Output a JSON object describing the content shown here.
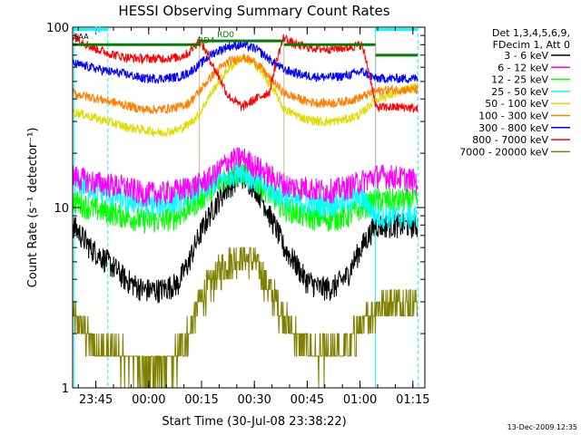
{
  "chart_data": {
    "type": "line",
    "title": "HESSI Observing Summary Count Rates",
    "xlabel": "Start Time (30-Jul-08 23:38:22)",
    "ylabel": "Count Rate (s⁻¹ detector⁻¹)",
    "yscale": "log",
    "ylim": [
      1,
      100
    ],
    "xlim_minutes": [
      0,
      100
    ],
    "x_unit": "minutes after start",
    "x_ticks": [
      {
        "label": "23:45",
        "x": 6.6
      },
      {
        "label": "00:00",
        "x": 21.6
      },
      {
        "label": "00:15",
        "x": 36.6
      },
      {
        "label": "00:30",
        "x": 51.6
      },
      {
        "label": "00:45",
        "x": 66.6
      },
      {
        "label": "01:00",
        "x": 81.6
      },
      {
        "label": "01:15",
        "x": 96.6
      }
    ],
    "y_ticks": [
      {
        "label": "1",
        "value": 1
      },
      {
        "label": "10",
        "value": 10
      },
      {
        "label": "100",
        "value": 100
      }
    ],
    "grid": false,
    "legend_header": [
      "Det 1,3,4,5,6,9,",
      "FDecim 1, Att 0"
    ],
    "legend_position": "right",
    "series": [
      {
        "name": "3 - 6 keV",
        "color": "#000000",
        "x": [
          0,
          5,
          10,
          15,
          20,
          25,
          30,
          33,
          36,
          40,
          44,
          48,
          52,
          56,
          60,
          63,
          66,
          70,
          74,
          78,
          82,
          86,
          90,
          95,
          98
        ],
        "y": [
          8,
          6,
          5,
          4,
          3.5,
          3.5,
          3.8,
          5,
          7,
          10,
          13,
          15,
          13,
          9,
          6,
          5,
          4,
          3.6,
          3.6,
          4.2,
          6,
          8,
          8,
          8,
          8
        ]
      },
      {
        "name": "6 - 12 keV",
        "color": "#ff00ff",
        "x": [
          0,
          5,
          10,
          15,
          20,
          25,
          30,
          33,
          36,
          40,
          44,
          48,
          52,
          56,
          60,
          63,
          66,
          70,
          74,
          78,
          82,
          86,
          90,
          95,
          98
        ],
        "y": [
          15,
          14,
          13.5,
          13,
          12,
          12,
          12.5,
          13,
          13.5,
          15,
          18,
          19,
          17,
          15,
          13.5,
          13,
          13,
          12.5,
          12.5,
          13,
          14,
          15,
          15,
          14.5,
          14
        ]
      },
      {
        "name": "12 - 25 keV",
        "color": "#00ff00",
        "x": [
          0,
          5,
          10,
          15,
          20,
          25,
          30,
          33,
          36,
          40,
          44,
          48,
          52,
          56,
          60,
          63,
          66,
          70,
          74,
          78,
          82,
          86,
          90,
          95,
          98
        ],
        "y": [
          11,
          10,
          9.5,
          9,
          8.5,
          8.5,
          9,
          10,
          11,
          13,
          15,
          16,
          14,
          12,
          10,
          9.5,
          9,
          8.7,
          8.7,
          9,
          10,
          11,
          11,
          11,
          11
        ]
      },
      {
        "name": "25 - 50 keV",
        "color": "#00ffff",
        "x": [
          0,
          5,
          10,
          15,
          20,
          25,
          30,
          33,
          36,
          40,
          44,
          48,
          52,
          56,
          60,
          63,
          66,
          70,
          74,
          78,
          82,
          86,
          90,
          95,
          98
        ],
        "y": [
          14,
          13,
          12,
          11,
          10.5,
          10.5,
          11,
          12,
          12.5,
          13.5,
          15,
          16,
          14,
          12.5,
          11.5,
          11,
          10.5,
          10.5,
          10.5,
          11,
          11.5,
          9,
          9,
          9,
          9
        ]
      },
      {
        "name": "50 - 100 keV",
        "color": "#dddd00",
        "x": [
          0,
          5,
          10,
          15,
          20,
          25,
          30,
          33,
          36,
          40,
          44,
          48,
          52,
          56,
          60,
          63,
          66,
          70,
          74,
          78,
          82,
          86,
          90,
          95,
          98
        ],
        "y": [
          34,
          32,
          30,
          28,
          27,
          26,
          27,
          29,
          33,
          45,
          58,
          68,
          62,
          48,
          35,
          33,
          31,
          30,
          30,
          31,
          33,
          40,
          42,
          45,
          47
        ]
      },
      {
        "name": "100 - 300 keV",
        "color": "#ff8000",
        "x": [
          0,
          5,
          10,
          15,
          20,
          25,
          30,
          33,
          36,
          40,
          44,
          48,
          52,
          56,
          60,
          63,
          66,
          70,
          74,
          78,
          82,
          86,
          90,
          95,
          98
        ],
        "y": [
          43,
          41,
          39,
          37,
          35,
          35,
          36,
          38,
          44,
          55,
          64,
          68,
          64,
          52,
          43,
          41,
          39,
          38,
          38,
          39,
          41,
          44,
          45,
          45,
          45
        ]
      },
      {
        "name": "300 - 800 keV",
        "color": "#0000ff",
        "x": [
          0,
          5,
          10,
          15,
          20,
          25,
          30,
          33,
          36,
          40,
          44,
          48,
          52,
          56,
          60,
          63,
          66,
          70,
          74,
          78,
          82,
          86,
          90,
          95,
          98
        ],
        "y": [
          63,
          60,
          57,
          55,
          52,
          52,
          53,
          56,
          62,
          72,
          78,
          80,
          76,
          66,
          58,
          56,
          54,
          53,
          53,
          54,
          57,
          52,
          52,
          52,
          52
        ]
      },
      {
        "name": "800 - 7000 keV",
        "color": "#ff0000",
        "x": [
          0,
          5,
          10,
          15,
          20,
          25,
          30,
          33,
          36,
          40,
          44,
          48,
          52,
          56,
          60,
          63,
          66,
          70,
          74,
          78,
          82,
          86,
          90,
          95,
          98
        ],
        "y": [
          90,
          78,
          72,
          68,
          67,
          67,
          68,
          72,
          85,
          60,
          42,
          36,
          40,
          44,
          88,
          80,
          78,
          76,
          76,
          77,
          80,
          36,
          36,
          36,
          35
        ]
      },
      {
        "name": "7000 - 20000 keV",
        "color": "#808000",
        "x": [
          0,
          5,
          10,
          15,
          20,
          25,
          30,
          33,
          36,
          40,
          44,
          48,
          52,
          56,
          60,
          63,
          66,
          70,
          74,
          78,
          82,
          86,
          90,
          95,
          98
        ],
        "y": [
          2.5,
          1.8,
          1.6,
          1.5,
          1.3,
          1.3,
          1.5,
          2,
          3,
          4,
          5,
          5.5,
          5,
          3.5,
          2.5,
          2,
          1.7,
          1.5,
          1.5,
          1.7,
          2.2,
          2.8,
          3,
          3,
          3
        ]
      }
    ],
    "annotations": [
      {
        "text": "N",
        "color": "#00ffff"
      },
      {
        "text": "SAA",
        "color": "#000000"
      },
      {
        "text": "RD4",
        "color": "#008000"
      },
      {
        "text": "RD0",
        "color": "#008000"
      }
    ],
    "flag_lines": [
      {
        "name": "N",
        "color": "#00ffff",
        "y_value": 97,
        "segments": [
          [
            0,
            10
          ],
          [
            86,
            98
          ]
        ]
      },
      {
        "name": "RD4",
        "color": "#008000",
        "y_value": 80,
        "segments": [
          [
            0,
            36
          ],
          [
            60,
            86
          ]
        ]
      },
      {
        "name": "RD0",
        "color": "#008000",
        "y_value": 84,
        "segments": [
          [
            36,
            60
          ]
        ]
      },
      {
        "name": "RD0-late",
        "color": "#008000",
        "y_value": 70,
        "segments": [
          [
            86,
            98
          ]
        ]
      }
    ],
    "cyan_vlines_minutes": [
      0.5,
      10,
      86,
      98
    ],
    "dashed_vlines_minutes": [
      10,
      98
    ],
    "tan_vlines_minutes": [
      36,
      60,
      86
    ]
  },
  "footer_date": "13-Dec-2009 12:35"
}
